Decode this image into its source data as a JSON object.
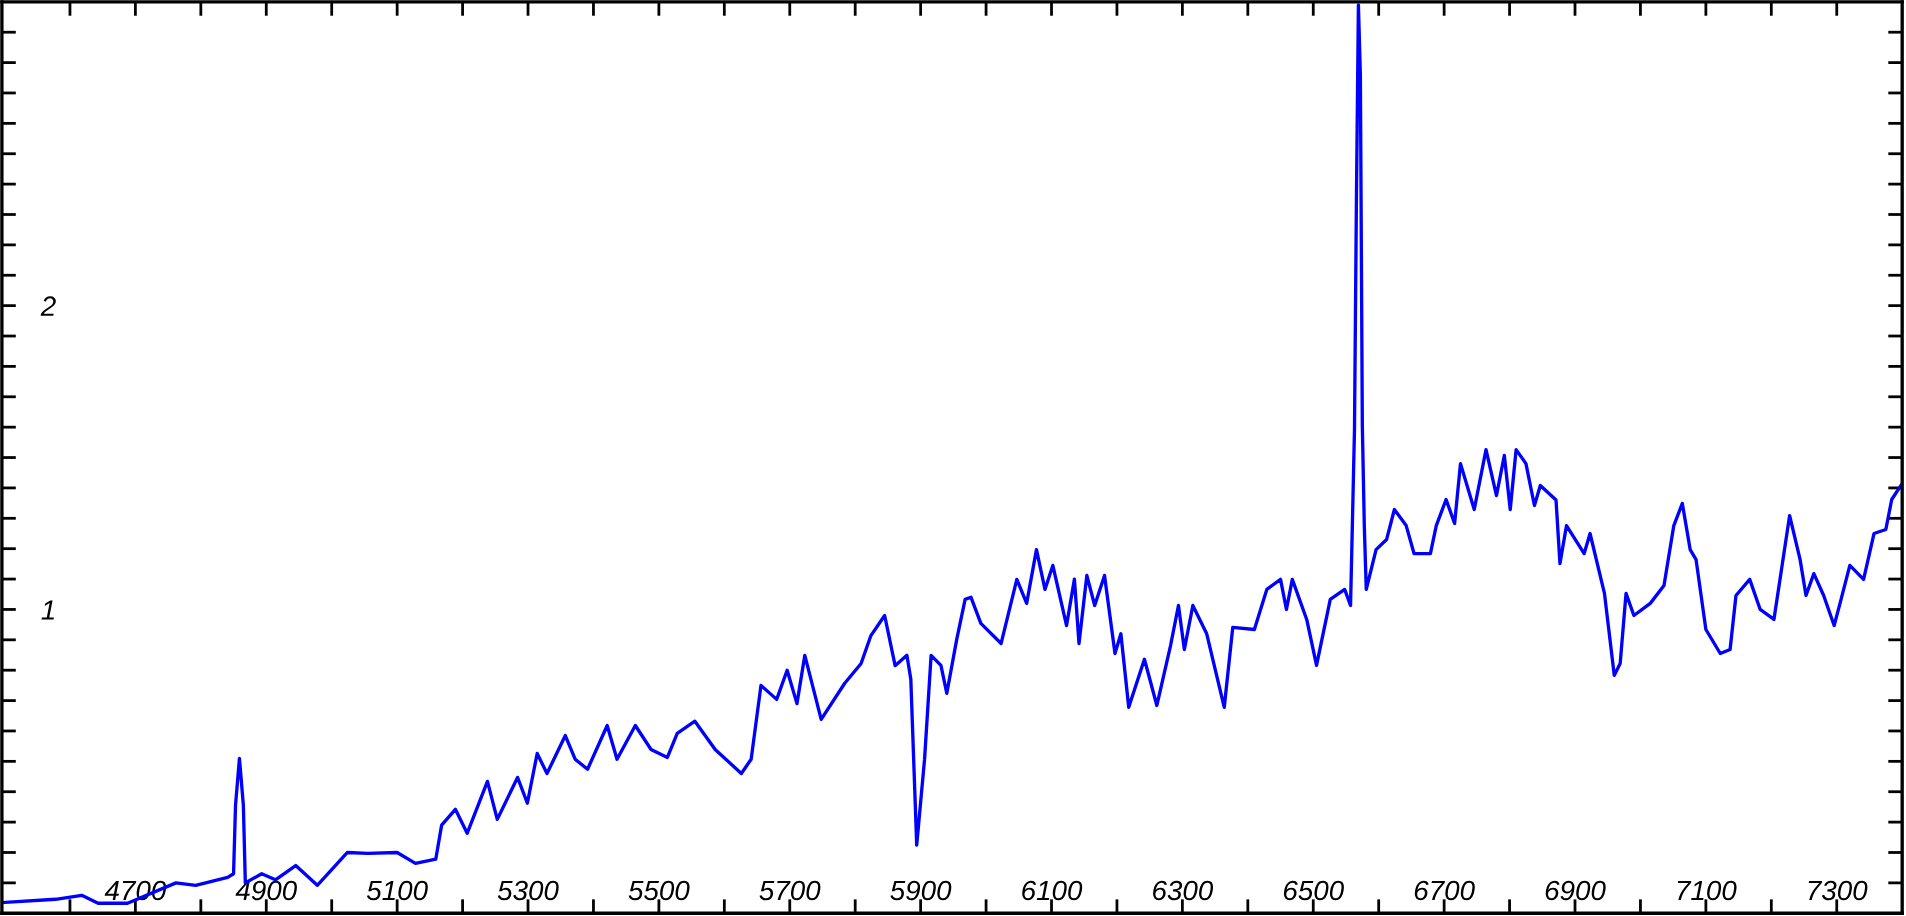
{
  "chart_data": {
    "type": "line",
    "color": "#0000ff",
    "grid": false,
    "legend": false,
    "marker": "none",
    "line_style": "solid",
    "x": [
      4496,
      4578,
      4618,
      4643,
      4688,
      4762,
      4792,
      4841,
      4850,
      4853,
      4859,
      4865,
      4868,
      4893,
      4914,
      4945,
      4978,
      5024,
      5055,
      5100,
      5128,
      5159,
      5168,
      5189,
      5207,
      5238,
      5253,
      5284,
      5299,
      5314,
      5329,
      5357,
      5372,
      5391,
      5421,
      5436,
      5464,
      5488,
      5513,
      5528,
      5555,
      5586,
      5626,
      5641,
      5656,
      5680,
      5696,
      5711,
      5723,
      5748,
      5784,
      5809,
      5824,
      5845,
      5861,
      5879,
      5885,
      5894,
      5906,
      5916,
      5931,
      5940,
      5955,
      5968,
      5977,
      5992,
      6023,
      6047,
      6062,
      6077,
      6090,
      6102,
      6123,
      6135,
      6142,
      6154,
      6166,
      6181,
      6197,
      6206,
      6218,
      6242,
      6261,
      6282,
      6294,
      6303,
      6316,
      6337,
      6364,
      6377,
      6410,
      6429,
      6450,
      6459,
      6468,
      6490,
      6505,
      6526,
      6548,
      6557,
      6563,
      6566,
      6569,
      6572,
      6575,
      6578,
      6581,
      6596,
      6612,
      6624,
      6642,
      6654,
      6679,
      6688,
      6703,
      6716,
      6725,
      6746,
      6764,
      6780,
      6792,
      6801,
      6810,
      6825,
      6838,
      6847,
      6871,
      6877,
      6887,
      6914,
      6923,
      6945,
      6960,
      6969,
      6978,
      6990,
      7015,
      7036,
      7051,
      7064,
      7076,
      7085,
      7100,
      7122,
      7137,
      7146,
      7167,
      7183,
      7204,
      7228,
      7244,
      7253,
      7265,
      7280,
      7296,
      7305,
      7320,
      7341,
      7357,
      7375,
      7384,
      7398
    ],
    "values": [
      0.035,
      0.046,
      0.059,
      0.033,
      0.033,
      0.1,
      0.092,
      0.118,
      0.13,
      0.355,
      0.51,
      0.355,
      0.1,
      0.13,
      0.11,
      0.157,
      0.092,
      0.2,
      0.197,
      0.2,
      0.164,
      0.178,
      0.29,
      0.342,
      0.263,
      0.434,
      0.309,
      0.447,
      0.362,
      0.526,
      0.46,
      0.585,
      0.507,
      0.474,
      0.618,
      0.507,
      0.618,
      0.539,
      0.513,
      0.592,
      0.632,
      0.539,
      0.46,
      0.507,
      0.75,
      0.704,
      0.8,
      0.69,
      0.849,
      0.638,
      0.757,
      0.822,
      0.914,
      0.98,
      0.815,
      0.849,
      0.77,
      0.224,
      0.507,
      0.849,
      0.816,
      0.724,
      0.9,
      1.033,
      1.04,
      0.954,
      0.888,
      1.099,
      1.02,
      1.197,
      1.066,
      1.145,
      0.947,
      1.1,
      0.888,
      1.112,
      1.013,
      1.112,
      0.855,
      0.92,
      0.678,
      0.836,
      0.684,
      0.882,
      1.013,
      0.868,
      1.013,
      0.921,
      0.678,
      0.941,
      0.934,
      1.066,
      1.099,
      1.0,
      1.099,
      0.967,
      0.816,
      1.033,
      1.066,
      1.013,
      1.592,
      2.36,
      2.99,
      2.76,
      1.605,
      1.276,
      1.066,
      1.197,
      1.23,
      1.329,
      1.276,
      1.184,
      1.184,
      1.276,
      1.362,
      1.283,
      1.48,
      1.329,
      1.526,
      1.375,
      1.507,
      1.329,
      1.526,
      1.48,
      1.342,
      1.408,
      1.36,
      1.151,
      1.276,
      1.184,
      1.25,
      1.053,
      0.783,
      0.822,
      1.053,
      0.98,
      1.02,
      1.079,
      1.276,
      1.349,
      1.197,
      1.164,
      0.934,
      0.855,
      0.868,
      1.046,
      1.099,
      1.0,
      0.967,
      1.309,
      1.164,
      1.046,
      1.118,
      1.046,
      0.947,
      1.02,
      1.145,
      1.099,
      1.25,
      1.263,
      1.362,
      1.408
    ],
    "xlim": [
      4496,
      7400
    ],
    "ylim": [
      0,
      3
    ],
    "xticks": [
      {
        "value": 4600,
        "label": null
      },
      4700,
      {
        "value": 4800,
        "label": null
      },
      4900,
      {
        "value": 5000,
        "label": null
      },
      5100,
      {
        "value": 5200,
        "label": null
      },
      5300,
      {
        "value": 5400,
        "label": null
      },
      5500,
      {
        "value": 5600,
        "label": null
      },
      5700,
      {
        "value": 5800,
        "label": null
      },
      5900,
      {
        "value": 6000,
        "label": null
      },
      6100,
      {
        "value": 6200,
        "label": null
      },
      6300,
      {
        "value": 6400,
        "label": null
      },
      6500,
      {
        "value": 6600,
        "label": null
      },
      6700,
      {
        "value": 6800,
        "label": null
      },
      6900,
      {
        "value": 7000,
        "label": null
      },
      7100,
      {
        "value": 7200,
        "label": null
      },
      7300
    ],
    "yticks": [
      {
        "value": 0.1,
        "label": null
      },
      {
        "value": 0.2,
        "label": null
      },
      {
        "value": 0.3,
        "label": null
      },
      {
        "value": 0.4,
        "label": null
      },
      {
        "value": 0.5,
        "label": null
      },
      {
        "value": 0.6,
        "label": null
      },
      {
        "value": 0.7,
        "label": null
      },
      {
        "value": 0.8,
        "label": null
      },
      {
        "value": 0.9,
        "label": null
      },
      1,
      {
        "value": 1.1,
        "label": null
      },
      {
        "value": 1.2,
        "label": null
      },
      {
        "value": 1.3,
        "label": null
      },
      {
        "value": 1.4,
        "label": null
      },
      {
        "value": 1.5,
        "label": null
      },
      {
        "value": 1.6,
        "label": null
      },
      {
        "value": 1.7,
        "label": null
      },
      {
        "value": 1.8,
        "label": null
      },
      {
        "value": 1.9,
        "label": null
      },
      2,
      {
        "value": 2.1,
        "label": null
      },
      {
        "value": 2.2,
        "label": null
      },
      {
        "value": 2.3,
        "label": null
      },
      {
        "value": 2.4,
        "label": null
      },
      {
        "value": 2.5,
        "label": null
      },
      {
        "value": 2.6,
        "label": null
      },
      {
        "value": 2.7,
        "label": null
      },
      {
        "value": 2.8,
        "label": null
      },
      {
        "value": 2.9,
        "label": null
      }
    ]
  }
}
